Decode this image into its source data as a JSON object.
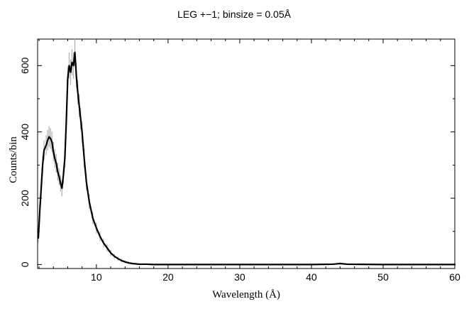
{
  "chart_data": {
    "type": "line",
    "title": "LEG +−1; binsize = 0.05Å",
    "xlabel": "Wavelength (Å)",
    "ylabel": "Counts/bin",
    "xlim": [
      1.8,
      60
    ],
    "ylim": [
      -12,
      680
    ],
    "x_ticks": [
      10,
      20,
      30,
      40,
      50,
      60
    ],
    "y_ticks": [
      0,
      200,
      400,
      600
    ],
    "x_tick_labels": [
      "10",
      "20",
      "30",
      "40",
      "50",
      "60"
    ],
    "y_tick_labels": [
      "0",
      "200",
      "400",
      "600"
    ],
    "grid": false,
    "legend": "none",
    "series": [
      {
        "color": "#000000",
        "error_color": "#b0b0b0",
        "x": [
          1.9,
          2.1,
          2.3,
          2.5,
          2.7,
          3.0,
          3.2,
          3.4,
          3.6,
          3.8,
          4.0,
          4.2,
          4.4,
          4.6,
          4.8,
          5.0,
          5.2,
          5.4,
          5.6,
          5.8,
          6.0,
          6.2,
          6.4,
          6.6,
          6.8,
          7.0,
          7.2,
          7.4,
          7.6,
          7.8,
          8.0,
          8.3,
          8.6,
          9.0,
          9.5,
          10.0,
          10.5,
          11.0,
          11.5,
          12.0,
          12.5,
          13.0,
          13.5,
          14.0,
          14.5,
          15.0,
          15.5,
          16.0,
          17.0,
          18.0,
          20.0,
          25.0,
          30.0,
          35.0,
          40.0,
          43.0,
          44.0,
          45.0,
          50.0,
          55.0,
          60.0
        ],
        "y": [
          80,
          160,
          230,
          300,
          345,
          360,
          375,
          385,
          380,
          370,
          340,
          320,
          305,
          280,
          265,
          245,
          230,
          270,
          320,
          430,
          560,
          600,
          580,
          610,
          600,
          640,
          570,
          520,
          480,
          440,
          400,
          320,
          250,
          190,
          140,
          110,
          85,
          65,
          50,
          35,
          25,
          18,
          12,
          8,
          5,
          3,
          2,
          1,
          1,
          0,
          0,
          0,
          0,
          0,
          0,
          1,
          3,
          1,
          0,
          0,
          0
        ]
      }
    ]
  }
}
